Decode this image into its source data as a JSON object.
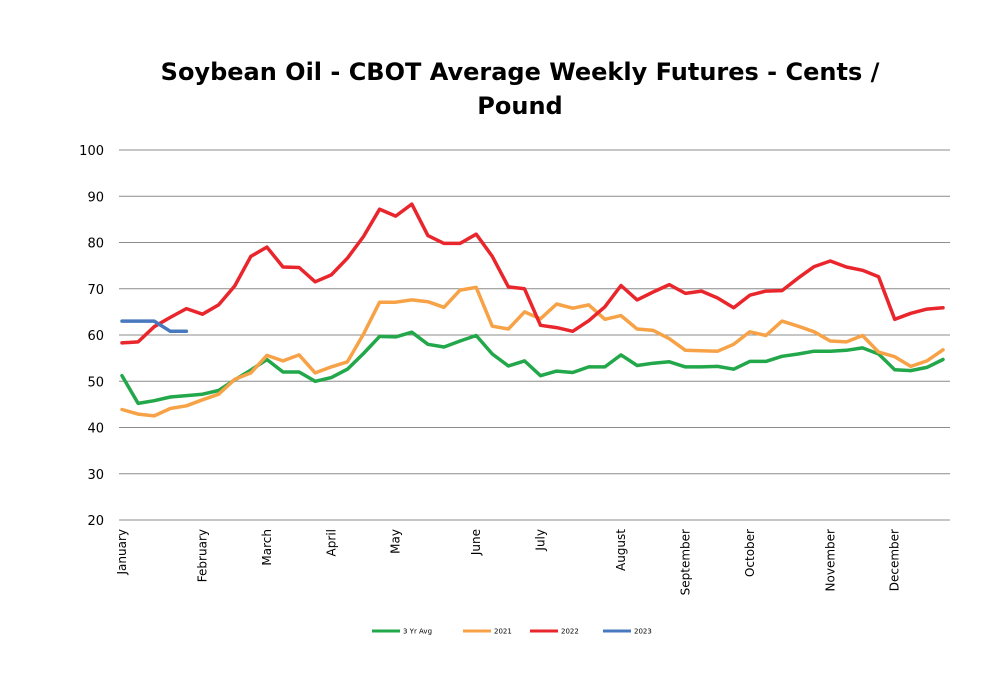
{
  "chart_data": {
    "type": "line",
    "title": "Soybean Oil - CBOT Average Weekly Futures - Cents /\nPound",
    "xlabel": "",
    "ylabel": "",
    "ylim": [
      20,
      100
    ],
    "yticks": [
      20,
      30,
      40,
      50,
      60,
      70,
      80,
      90,
      100
    ],
    "grid": true,
    "legend_position": "bottom",
    "x_tick_labels": [
      {
        "label": "January",
        "week": 1
      },
      {
        "label": "February",
        "week": 6
      },
      {
        "label": "March",
        "week": 10
      },
      {
        "label": "April",
        "week": 14
      },
      {
        "label": "May",
        "week": 18
      },
      {
        "label": "June",
        "week": 23
      },
      {
        "label": "July",
        "week": 27
      },
      {
        "label": "August",
        "week": 32
      },
      {
        "label": "September",
        "week": 36
      },
      {
        "label": "October",
        "week": 40
      },
      {
        "label": "November",
        "week": 45
      },
      {
        "label": "December",
        "week": 49
      }
    ],
    "series": [
      {
        "name": "3 Yr Avg",
        "color": "#22a74a",
        "values": [
          51.2,
          45.2,
          45.8,
          46.6,
          46.9,
          47.2,
          48.0,
          50.3,
          52.4,
          54.7,
          52.0,
          52.0,
          50.0,
          50.8,
          52.6,
          56.0,
          59.7,
          59.6,
          60.6,
          58.0,
          57.4,
          58.7,
          59.9,
          55.9,
          53.3,
          54.4,
          51.2,
          52.2,
          51.9,
          53.1,
          53.1,
          55.7,
          53.4,
          53.9,
          54.2,
          53.1,
          53.1,
          53.2,
          52.6,
          54.3,
          54.3,
          55.4,
          55.9,
          56.5,
          56.5,
          56.7,
          57.2,
          55.9,
          52.5,
          52.3,
          53.0,
          54.7
        ]
      },
      {
        "name": "2021",
        "color": "#f7a246",
        "values": [
          43.9,
          42.9,
          42.5,
          44.1,
          44.7,
          46.0,
          47.2,
          50.4,
          51.8,
          55.6,
          54.4,
          55.7,
          51.8,
          53.1,
          54.2,
          60.2,
          67.1,
          67.1,
          67.6,
          67.2,
          66.0,
          69.7,
          70.3,
          61.9,
          61.3,
          65.0,
          63.5,
          66.7,
          65.8,
          66.5,
          63.4,
          64.2,
          61.3,
          61.0,
          59.2,
          56.7,
          56.6,
          56.5,
          58.0,
          60.7,
          59.9,
          63.0,
          61.9,
          60.7,
          58.7,
          58.5,
          59.9,
          56.3,
          55.3,
          53.2,
          54.4,
          56.8
        ]
      },
      {
        "name": "2022",
        "color": "#e9262c",
        "values": [
          58.3,
          58.5,
          61.8,
          63.8,
          65.7,
          64.5,
          66.5,
          70.6,
          77.0,
          79.0,
          74.7,
          74.6,
          71.5,
          73.0,
          76.6,
          81.3,
          87.2,
          85.7,
          88.3,
          81.5,
          79.8,
          79.8,
          81.8,
          77.0,
          70.4,
          70.0,
          62.1,
          61.6,
          60.8,
          63.1,
          66.1,
          70.7,
          67.6,
          69.3,
          70.9,
          69.0,
          69.5,
          68.0,
          65.9,
          68.6,
          69.5,
          69.6,
          72.3,
          74.8,
          76.0,
          74.7,
          74.0,
          72.6,
          63.4,
          64.7,
          65.6,
          65.9
        ]
      },
      {
        "name": "2023",
        "color": "#4879be",
        "values": [
          63.0,
          63.0,
          63.0,
          60.8,
          60.8
        ]
      }
    ]
  }
}
